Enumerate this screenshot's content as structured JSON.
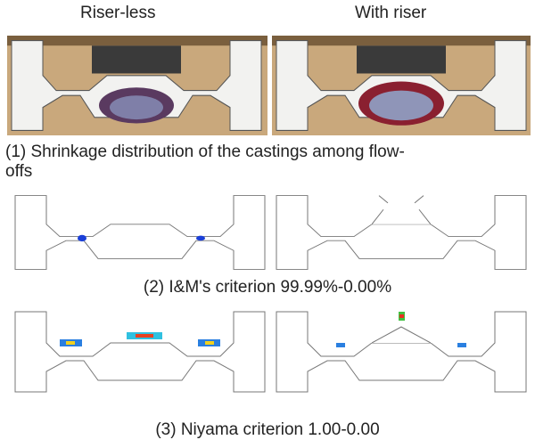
{
  "labels": [
    "Riser-less",
    "With riser"
  ],
  "captions": [
    "(1) Shrinkage distribution of the castings among flow-offs",
    "(2) I&M's criterion 99.99%-0.00%",
    "(3) Niyama criterion 1.00-0.00"
  ]
}
